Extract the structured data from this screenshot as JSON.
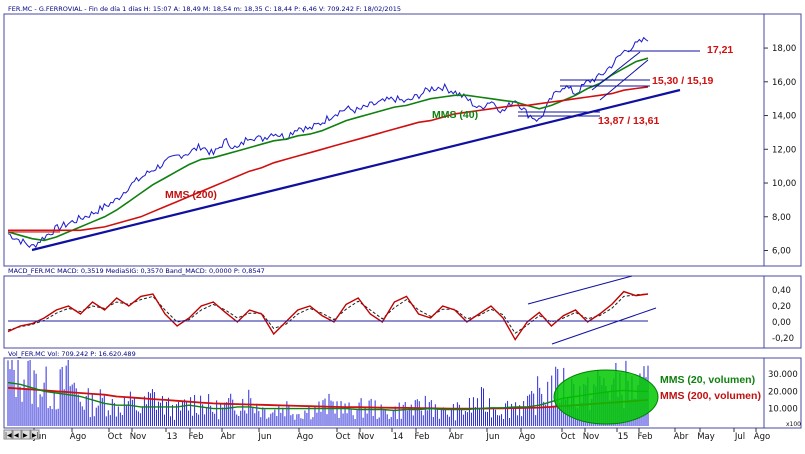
{
  "colors": {
    "price": "#1a1acc",
    "mms40": "#108010",
    "mms200": "#d01010",
    "trend": "#1010a0",
    "macd": "#c00000",
    "signal": "#202020",
    "volume": "#2a2ad8",
    "panel_border": "#4a4aa0",
    "highlight": "#00c800"
  },
  "header": {
    "price": "FER.MC - G.FERROVIAL - Fin de día 1 días H: 15:07  A: 18,49  M: 18,54  m: 18,35  C: 18,44  P: 6,46  V: 709.242  F: 18/02/2015",
    "macd": "MACD_FER.MC  MACD: 0,3519  MediaSIG: 0,3570  Band_MACD: 0,0000  P: 0,8547",
    "volume": "Vol_FER.MC  Vol: 709.242  P: 16.620.489"
  },
  "annotations": {
    "mms200": "MMS (200)",
    "mms40": "MMS (40)",
    "level_17": "17,21",
    "level_15": "15,30 / 15,19",
    "level_13": "13,87 / 13,61",
    "vol_mms20": "MMS (20, volumen)",
    "vol_mms200": "MMS (200, volumen)",
    "corner_label": "x100"
  },
  "chart_data": [
    {
      "type": "line",
      "panel": "price",
      "y_ticks": [
        "18,00",
        "16,00",
        "14,00",
        "12,00",
        "10,00",
        "8,00",
        "6,00"
      ],
      "y_tick_values": [
        18,
        16,
        14,
        12,
        10,
        8,
        6
      ],
      "ylim": [
        5.2,
        19.9
      ],
      "x_ticks": [
        "Jun",
        "Ago",
        "Oct",
        "Nov",
        "13",
        "Feb",
        "Abr",
        "Jun",
        "Ago",
        "Oct",
        "Nov",
        "14",
        "Feb",
        "Abr",
        "Jun",
        "Ago",
        "Oct",
        "Nov",
        "15",
        "Feb",
        "Abr",
        "May",
        "Jul",
        "Ago"
      ],
      "series": [
        {
          "name": "",
          "values": [
            7.0,
            6.6,
            6.2,
            6.8,
            7.3,
            7.6,
            7.9,
            8.2,
            8.6,
            9.0,
            9.8,
            10.3,
            10.8,
            11.2,
            11.6,
            11.8,
            12.2,
            11.7,
            12.5,
            12.0,
            12.8,
            12.6,
            13.0,
            12.7,
            13.3,
            13.2,
            13.6,
            14.1,
            14.4,
            14.3,
            14.6,
            14.8,
            15.0,
            14.8,
            15.2,
            15.6,
            15.7,
            15.4,
            15.0,
            14.4,
            14.9,
            14.2,
            15.0,
            14.1,
            13.7,
            15.0,
            15.8,
            15.3,
            16.0,
            16.3,
            17.0,
            17.8,
            18.2,
            18.6
          ]
        },
        {
          "name": "MMS (40)",
          "values": [
            7.1,
            6.9,
            6.7,
            6.6,
            6.8,
            7.1,
            7.4,
            7.7,
            8.0,
            8.4,
            8.9,
            9.4,
            9.9,
            10.3,
            10.7,
            11.1,
            11.4,
            11.5,
            11.7,
            11.9,
            12.1,
            12.3,
            12.5,
            12.6,
            12.8,
            12.9,
            13.1,
            13.4,
            13.7,
            13.9,
            14.1,
            14.3,
            14.5,
            14.6,
            14.8,
            15.0,
            15.1,
            15.2,
            15.2,
            15.1,
            15.0,
            14.9,
            14.8,
            14.6,
            14.4,
            14.6,
            14.9,
            15.2,
            15.6,
            15.9,
            16.4,
            16.8,
            17.2,
            17.4
          ]
        },
        {
          "name": "MMS (200)",
          "values": [
            7.2,
            7.2,
            7.2,
            7.2,
            7.2,
            7.2,
            7.2,
            7.3,
            7.4,
            7.6,
            7.8,
            8.0,
            8.3,
            8.6,
            8.9,
            9.2,
            9.5,
            9.8,
            10.1,
            10.4,
            10.7,
            10.9,
            11.2,
            11.4,
            11.6,
            11.8,
            12.0,
            12.2,
            12.4,
            12.6,
            12.8,
            13.0,
            13.2,
            13.4,
            13.6,
            13.7,
            13.9,
            14.1,
            14.2,
            14.3,
            14.4,
            14.5,
            14.6,
            14.6,
            14.7,
            14.8,
            14.9,
            15.0,
            15.1,
            15.2,
            15.3,
            15.5,
            15.6,
            15.7
          ]
        }
      ]
    },
    {
      "type": "line",
      "panel": "macd",
      "y_ticks": [
        "0,40",
        "0,20",
        "0,00",
        "-0,20"
      ],
      "y_tick_values": [
        0.4,
        0.2,
        0.0,
        -0.2
      ],
      "ylim": [
        -0.3,
        0.55
      ],
      "series": [
        {
          "name": "",
          "values": [
            -0.12,
            -0.05,
            -0.02,
            0.05,
            0.15,
            0.2,
            0.1,
            0.25,
            0.15,
            0.3,
            0.2,
            0.32,
            0.35,
            0.1,
            -0.05,
            0.05,
            0.2,
            0.25,
            0.12,
            0.0,
            0.15,
            0.1,
            -0.15,
            0.0,
            0.15,
            0.2,
            0.08,
            0.0,
            0.22,
            0.3,
            0.1,
            0.0,
            0.25,
            0.32,
            0.1,
            0.05,
            0.2,
            0.15,
            0.0,
            0.1,
            0.2,
            0.05,
            -0.22,
            0.0,
            0.12,
            -0.05,
            0.08,
            0.15,
            0.0,
            0.1,
            0.22,
            0.38,
            0.33,
            0.35
          ]
        },
        {
          "name": "",
          "values": [
            -0.1,
            -0.06,
            -0.03,
            0.02,
            0.11,
            0.17,
            0.13,
            0.2,
            0.17,
            0.25,
            0.22,
            0.28,
            0.32,
            0.15,
            0.0,
            0.03,
            0.15,
            0.22,
            0.15,
            0.05,
            0.11,
            0.11,
            -0.08,
            -0.03,
            0.1,
            0.17,
            0.11,
            0.03,
            0.16,
            0.26,
            0.15,
            0.04,
            0.18,
            0.28,
            0.15,
            0.07,
            0.16,
            0.16,
            0.04,
            0.08,
            0.16,
            0.09,
            -0.14,
            -0.04,
            0.08,
            0.0,
            0.05,
            0.12,
            0.04,
            0.08,
            0.17,
            0.32,
            0.34,
            0.35
          ]
        }
      ]
    },
    {
      "type": "bar",
      "panel": "volume",
      "y_ticks": [
        "30.000",
        "20.000",
        "10.000"
      ],
      "y_tick_values": [
        30000,
        20000,
        10000
      ],
      "ylim": [
        0,
        38000
      ],
      "series": [
        {
          "name": "",
          "values": [
            28000,
            31000,
            24000,
            21000,
            18000,
            26000,
            15000,
            12000,
            14000,
            10000,
            13000,
            9000,
            16000,
            11000,
            8000,
            12000,
            14000,
            9000,
            10000,
            13000,
            15000,
            9000,
            8000,
            11000,
            7000,
            9000,
            10000,
            12000,
            8000,
            9000,
            11000,
            7000,
            8000,
            10000,
            9000,
            13000,
            7000,
            8000,
            9000,
            14000,
            11000,
            9000,
            12000,
            10000,
            18000,
            20000,
            22000,
            19000,
            17000,
            23000,
            21000,
            24000,
            18000,
            22000
          ]
        },
        {
          "name": "MMS (20, volumen)",
          "values": [
            25000,
            24000,
            22000,
            20000,
            19000,
            18000,
            17000,
            15000,
            13000,
            12000,
            12000,
            11000,
            11000,
            11000,
            11000,
            12000,
            11000,
            10000,
            10000,
            11000,
            11000,
            10000,
            10000,
            10000,
            10000,
            10000,
            10000,
            10000,
            10000,
            9500,
            9500,
            9500,
            9000,
            9500,
            9500,
            10000,
            9500,
            9500,
            9500,
            10000,
            10500,
            10500,
            11000,
            11000,
            12000,
            14000,
            16000,
            17000,
            18000,
            19000,
            20000,
            20500,
            20000,
            20000
          ]
        },
        {
          "name": "MMS (200, volumen)",
          "values": [
            22000,
            21500,
            21000,
            20500,
            20000,
            19500,
            19000,
            18500,
            18000,
            17000,
            16500,
            16000,
            15500,
            15000,
            14500,
            14000,
            13500,
            13000,
            12800,
            12600,
            12400,
            12200,
            12000,
            11800,
            11600,
            11400,
            11200,
            11000,
            10900,
            10800,
            10700,
            10600,
            10500,
            10400,
            10300,
            10200,
            10100,
            10000,
            10000,
            10000,
            10100,
            10200,
            10300,
            10400,
            10600,
            11000,
            11500,
            12000,
            12500,
            13000,
            13500,
            14000,
            14500,
            15000
          ]
        }
      ]
    }
  ]
}
